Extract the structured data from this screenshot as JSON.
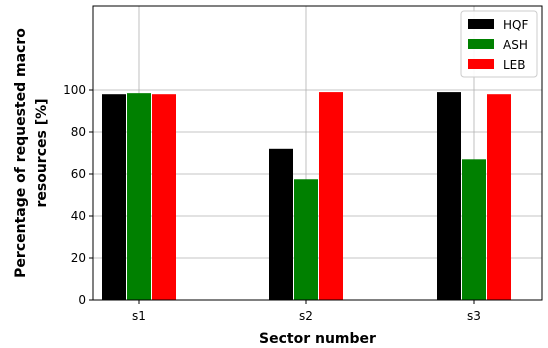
{
  "chart_data": {
    "type": "bar",
    "categories": [
      "s1",
      "s2",
      "s3"
    ],
    "series": [
      {
        "name": "HQF",
        "color": "#000000",
        "values": [
          98,
          72,
          99
        ]
      },
      {
        "name": "ASH",
        "color": "#008000",
        "values": [
          98.5,
          57.5,
          67
        ]
      },
      {
        "name": "LEB",
        "color": "#ff0000",
        "values": [
          98,
          99,
          98
        ]
      }
    ],
    "xlabel": "Sector number",
    "ylabel_lines": [
      "Percentage of requested macro",
      "resources [%]"
    ],
    "yticks": [
      "0",
      "20",
      "40",
      "60",
      "80",
      "100"
    ],
    "ylim": [
      0,
      140
    ],
    "grid": true,
    "legend_position": "top-right"
  }
}
